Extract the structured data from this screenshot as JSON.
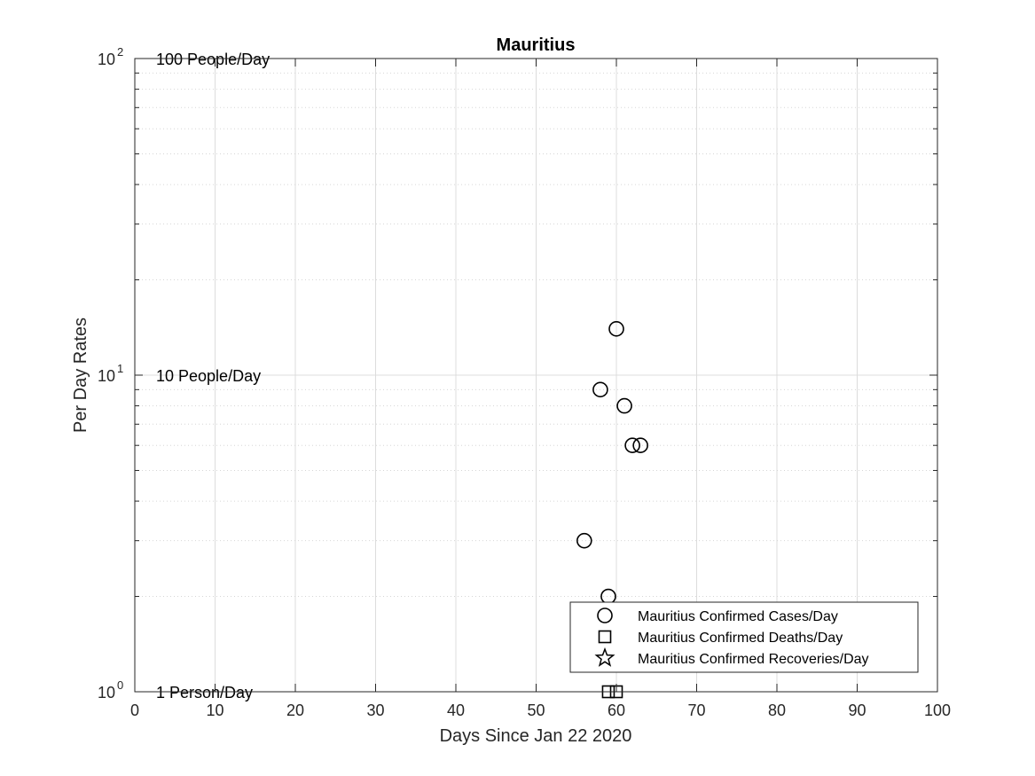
{
  "chart_data": {
    "type": "scatter",
    "title": "Mauritius",
    "xlabel": "Days Since Jan 22 2020",
    "ylabel": "Per Day Rates",
    "xlim": [
      0,
      100
    ],
    "ylim": [
      1,
      100
    ],
    "yscale": "log",
    "grid": true,
    "x_ticks": [
      "0",
      "10",
      "20",
      "30",
      "40",
      "50",
      "60",
      "70",
      "80",
      "90",
      "100"
    ],
    "x_tick_values": [
      0,
      10,
      20,
      30,
      40,
      50,
      60,
      70,
      80,
      90,
      100
    ],
    "y_ticks": [
      {
        "value": 1,
        "base": "10",
        "exp": "0"
      },
      {
        "value": 10,
        "base": "10",
        "exp": "1"
      },
      {
        "value": 100,
        "base": "10",
        "exp": "2"
      }
    ],
    "reference_labels": [
      {
        "value": 100,
        "text": "100 People/Day"
      },
      {
        "value": 10,
        "text": "10 People/Day"
      },
      {
        "value": 1,
        "text": "1 Person/Day"
      }
    ],
    "legend_position": "bottom-right",
    "series": [
      {
        "name": "Mauritius Confirmed Cases/Day",
        "marker": "circle",
        "color": "#000000",
        "points": [
          [
            56,
            3
          ],
          [
            58,
            9
          ],
          [
            59,
            2
          ],
          [
            60,
            14
          ],
          [
            61,
            8
          ],
          [
            62,
            6
          ],
          [
            63,
            6
          ]
        ]
      },
      {
        "name": "Mauritius Confirmed Deaths/Day",
        "marker": "square",
        "color": "#000000",
        "points": [
          [
            59,
            1
          ],
          [
            60,
            1
          ]
        ]
      },
      {
        "name": "Mauritius Confirmed Recoveries/Day",
        "marker": "star",
        "color": "#000000",
        "points": []
      }
    ]
  }
}
